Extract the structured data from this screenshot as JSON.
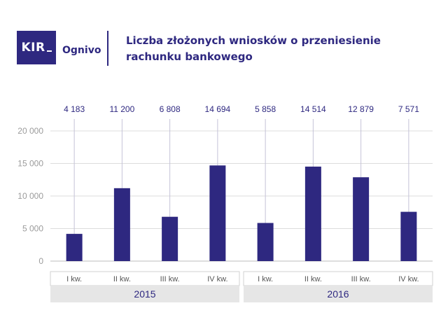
{
  "colors": {
    "brand": "#2e2880",
    "bar": "#2e2880",
    "label": "#2e2880",
    "axis_text": "#9b9b9b",
    "grid": "#dcdcdc",
    "leader": "#c4c2d8",
    "band": "#e6e6e6",
    "quarter_border": "#d0d0d0",
    "quarter_text": "#555555",
    "year_text": "#2e2880"
  },
  "header": {
    "logo_text": "KIR",
    "brand_name": "Ognivo",
    "title_line1": "Liczba złożonych wniosków o przeniesienie",
    "title_line2": "rachunku bankowego"
  },
  "chart_data": {
    "type": "bar",
    "title": "Liczba złożonych wniosków o przeniesienie rachunku bankowego",
    "categories": [
      "I kw.",
      "II kw.",
      "III kw.",
      "IV kw.",
      "I kw.",
      "II kw.",
      "III kw.",
      "IV kw."
    ],
    "groups": [
      {
        "label": "2015",
        "categories": [
          "I kw.",
          "II kw.",
          "III kw.",
          "IV kw."
        ]
      },
      {
        "label": "2016",
        "categories": [
          "I kw.",
          "II kw.",
          "III kw.",
          "IV kw."
        ]
      }
    ],
    "values": [
      4183,
      11200,
      6808,
      14694,
      5858,
      14514,
      12879,
      7571
    ],
    "value_labels": [
      "4 183",
      "11 200",
      "6 808",
      "14 694",
      "5 858",
      "14 514",
      "12 879",
      "7 571"
    ],
    "ylim": [
      0,
      20000
    ],
    "yticks": [
      0,
      5000,
      10000,
      15000,
      20000
    ],
    "ytick_labels": [
      "0",
      "5 000",
      "10 000",
      "15 000",
      "20 000"
    ],
    "grid": true,
    "legend": "none",
    "xlabel": "",
    "ylabel": ""
  }
}
